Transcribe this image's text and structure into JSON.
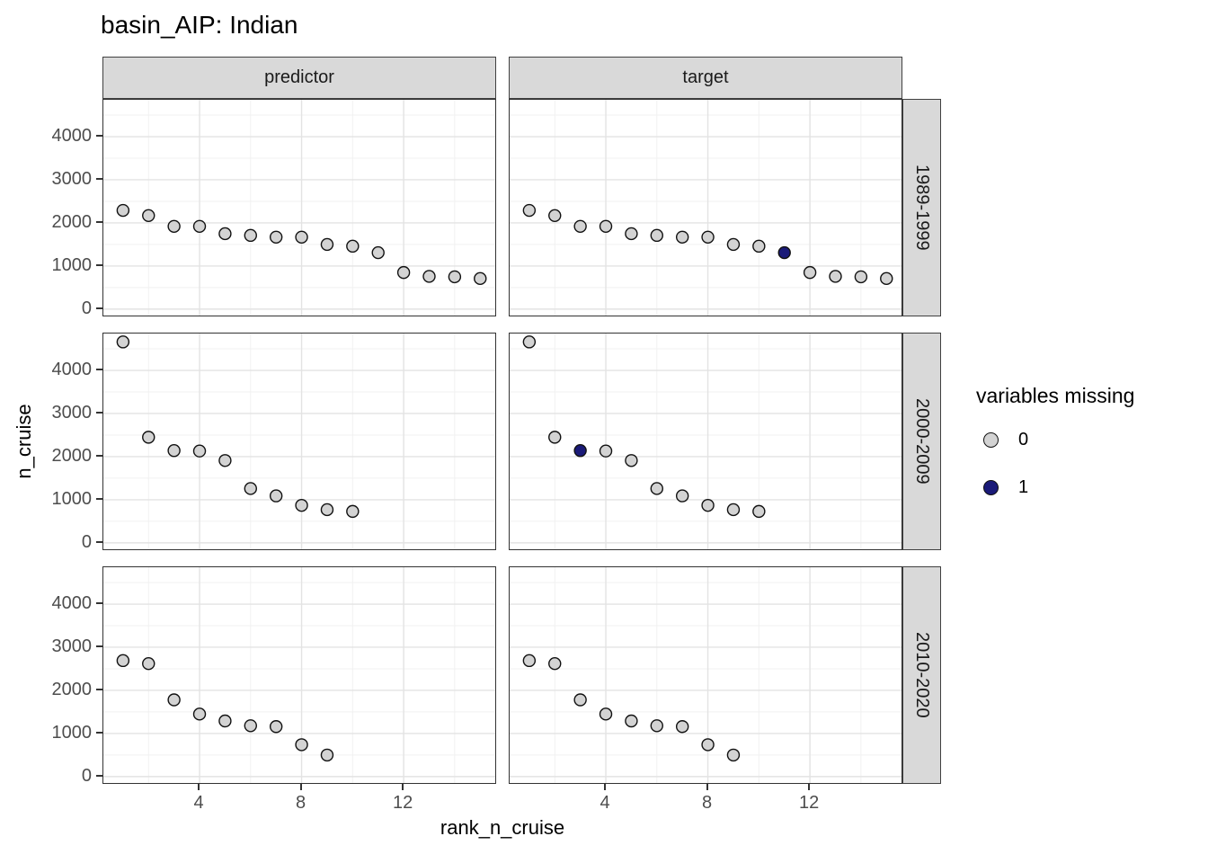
{
  "title": "basin_AIP: Indian",
  "facets": {
    "columns": [
      "predictor",
      "target"
    ],
    "rows": [
      "1989-1999",
      "2000-2009",
      "2010-2020"
    ]
  },
  "axes": {
    "x_title": "rank_n_cruise",
    "y_title": "n_cruise",
    "x_ticks": [
      "4",
      "8",
      "12"
    ],
    "y_ticks": [
      "4000",
      "3000",
      "2000",
      "1000",
      "0"
    ]
  },
  "legend": {
    "title": "variables missing",
    "items": [
      {
        "label": "0",
        "color": "#d3d3d3"
      },
      {
        "label": "1",
        "color": "#1a1a78"
      }
    ]
  },
  "colors": {
    "strip_fill": "#d9d9d9",
    "panel_border": "#333333",
    "grid_major": "#e3e3e3",
    "grid_minor": "#f1f1f1",
    "point_stroke": "#111111",
    "tick_text": "#4d4d4d"
  },
  "chart_data": {
    "type": "scatter",
    "title": "basin_AIP: Indian",
    "xlabel": "rank_n_cruise",
    "ylabel": "n_cruise",
    "legend_title": "variables missing",
    "facet_cols": [
      "predictor",
      "target"
    ],
    "facet_rows": [
      "1989-1999",
      "2000-2009",
      "2010-2020"
    ],
    "grid": true,
    "legend_position": "right",
    "xlim": [
      0.23,
      15.66
    ],
    "ylim": [
      -190,
      4855
    ],
    "x_major": [
      4,
      8,
      12
    ],
    "x_minor": [
      2,
      6,
      10,
      14
    ],
    "y_major": [
      4000,
      3000,
      2000,
      1000,
      0
    ],
    "y_minor": [
      4500,
      3500,
      2500,
      1500,
      500
    ],
    "panels": [
      {
        "col": "predictor",
        "row": "1989-1999",
        "x": [
          1,
          2,
          3,
          4,
          5,
          6,
          7,
          8,
          9,
          10,
          11,
          12,
          13,
          14,
          15
        ],
        "y": [
          2290,
          2170,
          1920,
          1920,
          1750,
          1710,
          1670,
          1670,
          1500,
          1460,
          1310,
          850,
          760,
          750,
          710
        ],
        "missing": [
          0,
          0,
          0,
          0,
          0,
          0,
          0,
          0,
          0,
          0,
          0,
          0,
          0,
          0,
          0
        ]
      },
      {
        "col": "target",
        "row": "1989-1999",
        "x": [
          1,
          2,
          3,
          4,
          5,
          6,
          7,
          8,
          9,
          10,
          11,
          12,
          13,
          14,
          15
        ],
        "y": [
          2290,
          2170,
          1920,
          1920,
          1750,
          1710,
          1670,
          1670,
          1500,
          1460,
          1310,
          850,
          760,
          750,
          710
        ],
        "missing": [
          0,
          0,
          0,
          0,
          0,
          0,
          0,
          0,
          0,
          0,
          1,
          0,
          0,
          0,
          0
        ]
      },
      {
        "col": "predictor",
        "row": "2000-2009",
        "x": [
          1,
          2,
          3,
          4,
          5,
          6,
          7,
          8,
          9,
          10
        ],
        "y": [
          4660,
          2450,
          2140,
          2130,
          1910,
          1260,
          1090,
          870,
          770,
          730
        ],
        "missing": [
          0,
          0,
          0,
          0,
          0,
          0,
          0,
          0,
          0,
          0
        ]
      },
      {
        "col": "target",
        "row": "2000-2009",
        "x": [
          1,
          2,
          3,
          4,
          5,
          6,
          7,
          8,
          9,
          10
        ],
        "y": [
          4660,
          2450,
          2140,
          2130,
          1910,
          1260,
          1090,
          870,
          770,
          730
        ],
        "missing": [
          0,
          0,
          1,
          0,
          0,
          0,
          0,
          0,
          0,
          0
        ]
      },
      {
        "col": "predictor",
        "row": "2010-2020",
        "x": [
          1,
          2,
          3,
          4,
          5,
          6,
          7,
          8,
          9
        ],
        "y": [
          2690,
          2620,
          1780,
          1450,
          1290,
          1180,
          1160,
          740,
          500
        ],
        "missing": [
          0,
          0,
          0,
          0,
          0,
          0,
          0,
          0,
          0
        ]
      },
      {
        "col": "target",
        "row": "2010-2020",
        "x": [
          1,
          2,
          3,
          4,
          5,
          6,
          7,
          8,
          9
        ],
        "y": [
          2690,
          2620,
          1780,
          1450,
          1290,
          1180,
          1160,
          740,
          500
        ],
        "missing": [
          0,
          0,
          0,
          0,
          0,
          0,
          0,
          0,
          0
        ]
      }
    ]
  }
}
